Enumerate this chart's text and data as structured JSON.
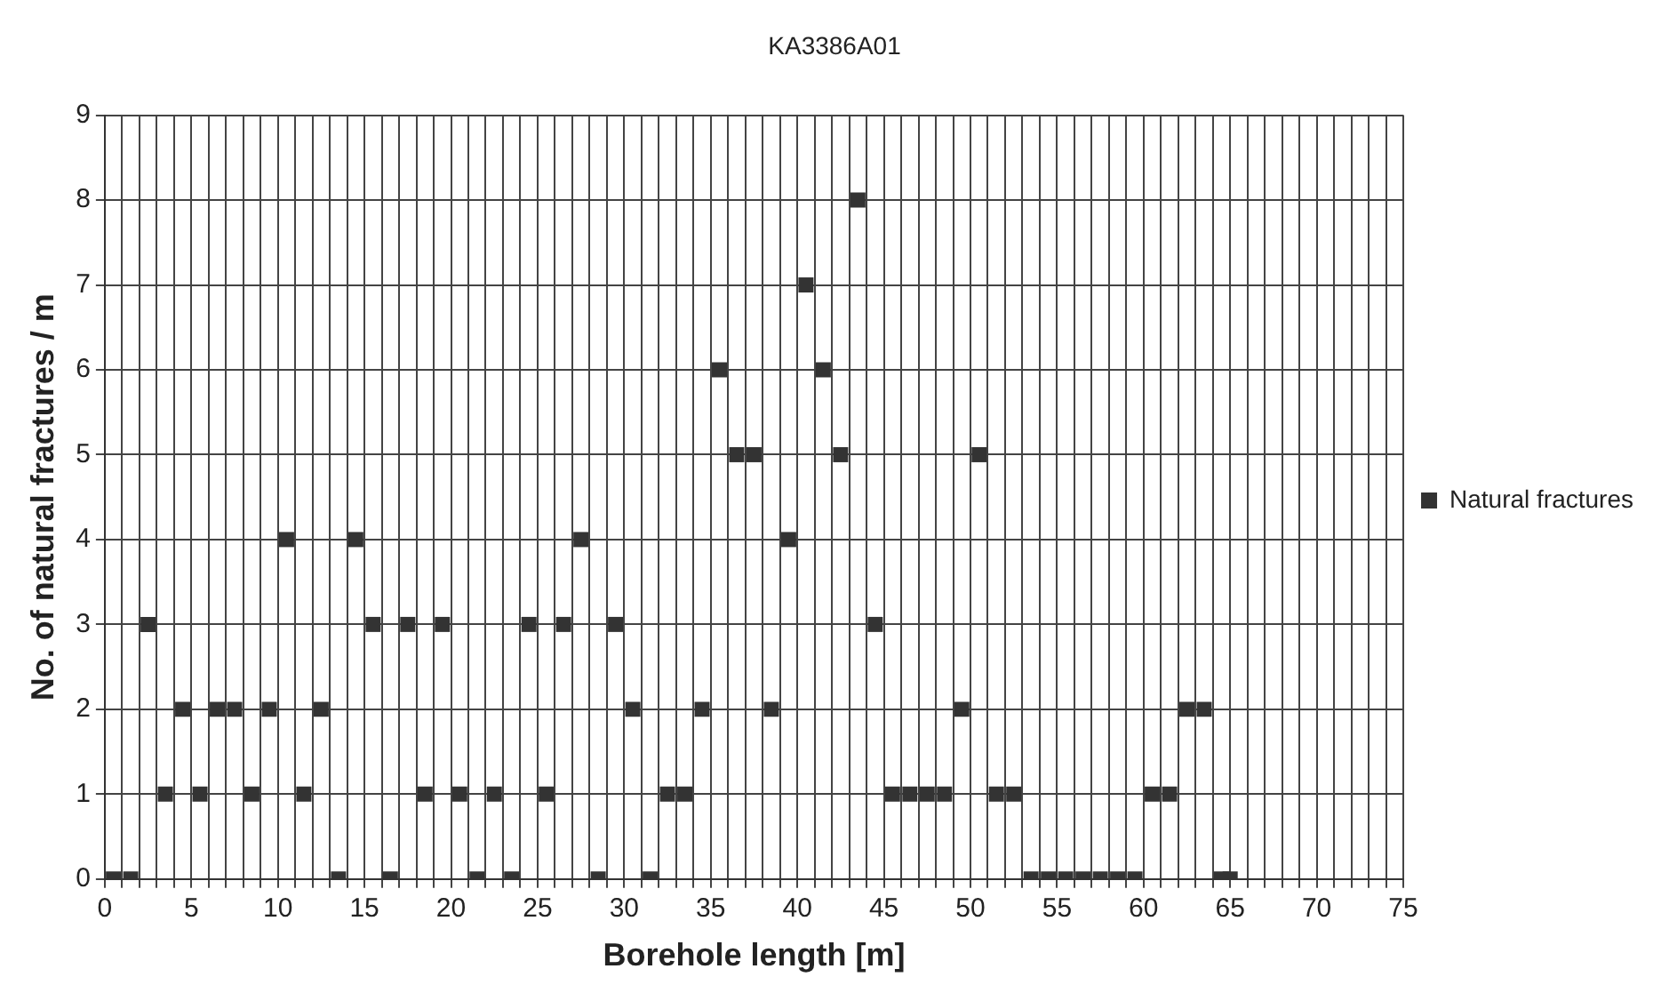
{
  "chart_data": {
    "type": "scatter",
    "title": "KA3386A01",
    "xlabel": "Borehole length [m]",
    "ylabel": "No. of natural fractures / m",
    "series": [
      {
        "name": "Natural fractures",
        "color": "#333333",
        "x": [
          0.5,
          1.5,
          2.5,
          3.5,
          4.5,
          5.5,
          6.5,
          7.5,
          8.5,
          9.5,
          10.5,
          11.5,
          12.5,
          13.5,
          14.5,
          15.5,
          16.5,
          17.5,
          18.5,
          19.5,
          20.5,
          21.5,
          22.5,
          23.5,
          24.5,
          25.5,
          26.5,
          27.5,
          28.5,
          29.5,
          30.5,
          31.5,
          32.5,
          33.5,
          34.5,
          35.5,
          36.5,
          37.5,
          38.5,
          39.5,
          40.5,
          41.5,
          42.5,
          43.5,
          44.5,
          45.5,
          46.5,
          47.5,
          48.5,
          49.5,
          50.5,
          51.5,
          52.5,
          53.5,
          54.5,
          55.5,
          56.5,
          57.5,
          58.5,
          59.5,
          60.5,
          61.5,
          62.5,
          63.5,
          64.5,
          65
        ],
        "values": [
          0,
          0,
          3,
          1,
          2,
          1,
          2,
          2,
          1,
          2,
          4,
          1,
          2,
          0,
          4,
          3,
          0,
          3,
          1,
          3,
          1,
          0,
          1,
          0,
          3,
          1,
          3,
          4,
          0,
          3,
          2,
          0,
          1,
          1,
          2,
          6,
          5,
          5,
          2,
          4,
          7,
          6,
          5,
          8,
          3,
          1,
          1,
          1,
          1,
          2,
          5,
          1,
          1,
          0,
          0,
          0,
          0,
          0,
          0,
          0,
          1,
          1,
          2,
          2,
          0,
          0
        ]
      }
    ],
    "xlim": [
      0,
      75
    ],
    "ylim": [
      0,
      9
    ],
    "xticks": [
      0,
      {
        "value": 1,
        "label": null
      },
      {
        "value": 2,
        "label": null
      },
      {
        "value": 3,
        "label": null
      },
      {
        "value": 4,
        "label": null
      },
      5,
      {
        "value": 6,
        "label": null
      },
      {
        "value": 7,
        "label": null
      },
      {
        "value": 8,
        "label": null
      },
      {
        "value": 9,
        "label": null
      },
      10,
      {
        "value": 11,
        "label": null
      },
      {
        "value": 12,
        "label": null
      },
      {
        "value": 13,
        "label": null
      },
      {
        "value": 14,
        "label": null
      },
      15,
      {
        "value": 16,
        "label": null
      },
      {
        "value": 17,
        "label": null
      },
      {
        "value": 18,
        "label": null
      },
      {
        "value": 19,
        "label": null
      },
      20,
      {
        "value": 21,
        "label": null
      },
      {
        "value": 22,
        "label": null
      },
      {
        "value": 23,
        "label": null
      },
      {
        "value": 24,
        "label": null
      },
      25,
      {
        "value": 26,
        "label": null
      },
      {
        "value": 27,
        "label": null
      },
      {
        "value": 28,
        "label": null
      },
      {
        "value": 29,
        "label": null
      },
      30,
      {
        "value": 31,
        "label": null
      },
      {
        "value": 32,
        "label": null
      },
      {
        "value": 33,
        "label": null
      },
      {
        "value": 34,
        "label": null
      },
      35,
      {
        "value": 36,
        "label": null
      },
      {
        "value": 37,
        "label": null
      },
      {
        "value": 38,
        "label": null
      },
      {
        "value": 39,
        "label": null
      },
      40,
      {
        "value": 41,
        "label": null
      },
      {
        "value": 42,
        "label": null
      },
      {
        "value": 43,
        "label": null
      },
      {
        "value": 44,
        "label": null
      },
      45,
      {
        "value": 46,
        "label": null
      },
      {
        "value": 47,
        "label": null
      },
      {
        "value": 48,
        "label": null
      },
      {
        "value": 49,
        "label": null
      },
      50,
      {
        "value": 51,
        "label": null
      },
      {
        "value": 52,
        "label": null
      },
      {
        "value": 53,
        "label": null
      },
      {
        "value": 54,
        "label": null
      },
      55,
      {
        "value": 56,
        "label": null
      },
      {
        "value": 57,
        "label": null
      },
      {
        "value": 58,
        "label": null
      },
      {
        "value": 59,
        "label": null
      },
      60,
      {
        "value": 61,
        "label": null
      },
      {
        "value": 62,
        "label": null
      },
      {
        "value": 63,
        "label": null
      },
      {
        "value": 64,
        "label": null
      },
      65,
      {
        "value": 66,
        "label": null
      },
      {
        "value": 67,
        "label": null
      },
      {
        "value": 68,
        "label": null
      },
      {
        "value": 69,
        "label": null
      },
      70,
      {
        "value": 71,
        "label": null
      },
      {
        "value": 72,
        "label": null
      },
      {
        "value": 73,
        "label": null
      },
      {
        "value": 74,
        "label": null
      },
      75
    ],
    "yticks": [
      0,
      1,
      2,
      3,
      4,
      5,
      6,
      7,
      8,
      9
    ],
    "grid": true,
    "legend": "right",
    "marker": "square"
  }
}
